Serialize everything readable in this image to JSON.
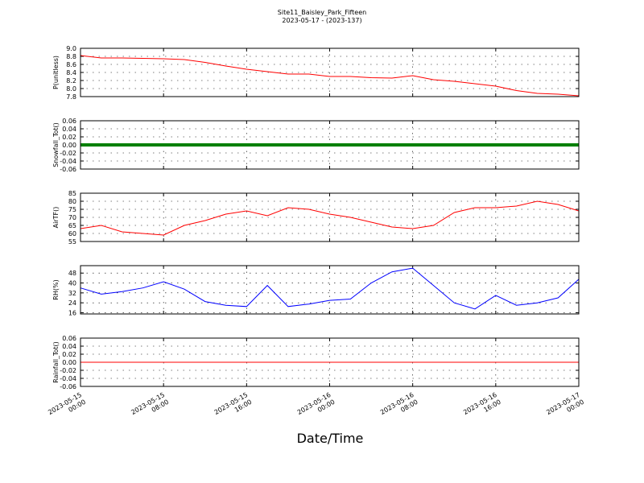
{
  "chart_data": [
    {
      "type": "line",
      "title": "Site11_Baisley_Park_Fifteen",
      "subtitle": "2023-05-17 - (2023-137)",
      "ylabel": "P(unitless)",
      "color": "#ff0000",
      "x": [
        "2023-05-15 00:00",
        "2023-05-15 02:00",
        "2023-05-15 04:00",
        "2023-05-15 06:00",
        "2023-05-15 08:00",
        "2023-05-15 10:00",
        "2023-05-15 12:00",
        "2023-05-15 14:00",
        "2023-05-15 16:00",
        "2023-05-15 18:00",
        "2023-05-15 20:00",
        "2023-05-15 22:00",
        "2023-05-16 00:00",
        "2023-05-16 02:00",
        "2023-05-16 04:00",
        "2023-05-16 06:00",
        "2023-05-16 08:00",
        "2023-05-16 10:00",
        "2023-05-16 12:00",
        "2023-05-16 14:00",
        "2023-05-16 16:00",
        "2023-05-16 18:00",
        "2023-05-16 20:00",
        "2023-05-16 22:00",
        "2023-05-17 00:00"
      ],
      "values": [
        8.82,
        8.76,
        8.76,
        8.75,
        8.74,
        8.72,
        8.65,
        8.56,
        8.48,
        8.42,
        8.36,
        8.36,
        8.3,
        8.3,
        8.27,
        8.26,
        8.32,
        8.22,
        8.18,
        8.12,
        8.06,
        7.95,
        7.88,
        7.86,
        7.82
      ],
      "ylim": [
        7.8,
        9.0
      ],
      "yticks": [
        7.8,
        {
          "value": 8,
          "label": "8.0"
        },
        8.2,
        8.4,
        8.6,
        8.8,
        {
          "value": 9,
          "label": "9.0"
        }
      ],
      "grid": true
    },
    {
      "type": "line",
      "ylabel": "Snowfall_Tot()",
      "color": "#008000",
      "x": [
        "2023-05-15 00:00",
        "2023-05-15 02:00",
        "2023-05-15 04:00",
        "2023-05-15 06:00",
        "2023-05-15 08:00",
        "2023-05-15 10:00",
        "2023-05-15 12:00",
        "2023-05-15 14:00",
        "2023-05-15 16:00",
        "2023-05-15 18:00",
        "2023-05-15 20:00",
        "2023-05-15 22:00",
        "2023-05-16 00:00",
        "2023-05-16 02:00",
        "2023-05-16 04:00",
        "2023-05-16 06:00",
        "2023-05-16 08:00",
        "2023-05-16 10:00",
        "2023-05-16 12:00",
        "2023-05-16 14:00",
        "2023-05-16 16:00",
        "2023-05-16 18:00",
        "2023-05-16 20:00",
        "2023-05-16 22:00",
        "2023-05-17 00:00"
      ],
      "values": [
        0,
        0,
        0,
        0,
        0,
        0,
        0,
        0,
        0,
        0,
        0,
        0,
        0,
        0,
        0,
        0,
        0,
        0,
        0,
        0,
        0,
        0,
        0,
        0,
        0
      ],
      "ylim": [
        -0.06,
        0.06
      ],
      "yticks": [
        -0.06,
        -0.04,
        -0.02,
        {
          "value": 0,
          "label": "0.00"
        },
        0.02,
        0.04,
        0.06
      ],
      "grid": true
    },
    {
      "type": "line",
      "ylabel": "AirTF()",
      "color": "#ff0000",
      "x": [
        "2023-05-15 00:00",
        "2023-05-15 02:00",
        "2023-05-15 04:00",
        "2023-05-15 06:00",
        "2023-05-15 08:00",
        "2023-05-15 10:00",
        "2023-05-15 12:00",
        "2023-05-15 14:00",
        "2023-05-15 16:00",
        "2023-05-15 18:00",
        "2023-05-15 20:00",
        "2023-05-15 22:00",
        "2023-05-16 00:00",
        "2023-05-16 02:00",
        "2023-05-16 04:00",
        "2023-05-16 06:00",
        "2023-05-16 08:00",
        "2023-05-16 10:00",
        "2023-05-16 12:00",
        "2023-05-16 14:00",
        "2023-05-16 16:00",
        "2023-05-16 18:00",
        "2023-05-16 20:00",
        "2023-05-16 22:00",
        "2023-05-17 00:00"
      ],
      "values": [
        63,
        65,
        61,
        60,
        59,
        65,
        68,
        72,
        74,
        71,
        76,
        75,
        72,
        70,
        67,
        64,
        63,
        65,
        73,
        76,
        76,
        77,
        80,
        78,
        74
      ],
      "ylim": [
        55,
        85
      ],
      "yticks": [
        55,
        60,
        65,
        70,
        75,
        80,
        85
      ],
      "grid": true
    },
    {
      "type": "line",
      "ylabel": "RH(%)",
      "color": "#0000ff",
      "x": [
        "2023-05-15 00:00",
        "2023-05-15 02:00",
        "2023-05-15 04:00",
        "2023-05-15 06:00",
        "2023-05-15 08:00",
        "2023-05-15 10:00",
        "2023-05-15 12:00",
        "2023-05-15 14:00",
        "2023-05-15 16:00",
        "2023-05-15 18:00",
        "2023-05-15 20:00",
        "2023-05-15 22:00",
        "2023-05-16 00:00",
        "2023-05-16 02:00",
        "2023-05-16 04:00",
        "2023-05-16 06:00",
        "2023-05-16 08:00",
        "2023-05-16 10:00",
        "2023-05-16 12:00",
        "2023-05-16 14:00",
        "2023-05-16 16:00",
        "2023-05-16 18:00",
        "2023-05-16 20:00",
        "2023-05-16 22:00",
        "2023-05-17 00:00"
      ],
      "values": [
        36,
        31,
        33,
        36,
        41,
        35,
        25,
        22,
        21,
        38,
        21,
        23,
        26,
        27,
        40,
        49,
        52,
        38,
        24,
        19,
        30,
        22,
        24,
        28,
        43
      ],
      "ylim": [
        15,
        54
      ],
      "yticks": [
        16,
        24,
        32,
        40,
        48
      ],
      "grid": true
    },
    {
      "type": "line",
      "ylabel": "Rainfall_Tot()",
      "xlabel": "Date/Time",
      "color": "#ff0000",
      "x": [
        "2023-05-15 00:00",
        "2023-05-15 02:00",
        "2023-05-15 04:00",
        "2023-05-15 06:00",
        "2023-05-15 08:00",
        "2023-05-15 10:00",
        "2023-05-15 12:00",
        "2023-05-15 14:00",
        "2023-05-15 16:00",
        "2023-05-15 18:00",
        "2023-05-15 20:00",
        "2023-05-15 22:00",
        "2023-05-16 00:00",
        "2023-05-16 02:00",
        "2023-05-16 04:00",
        "2023-05-16 06:00",
        "2023-05-16 08:00",
        "2023-05-16 10:00",
        "2023-05-16 12:00",
        "2023-05-16 14:00",
        "2023-05-16 16:00",
        "2023-05-16 18:00",
        "2023-05-16 20:00",
        "2023-05-16 22:00",
        "2023-05-17 00:00"
      ],
      "values": [
        0,
        0,
        0,
        0,
        0,
        0,
        0,
        0,
        0,
        0,
        0,
        0,
        0,
        0,
        0,
        0,
        0,
        0,
        0,
        0,
        0,
        0,
        0,
        0,
        0
      ],
      "ylim": [
        -0.06,
        0.06
      ],
      "yticks": [
        -0.06,
        -0.04,
        -0.02,
        {
          "value": 0,
          "label": "0.00"
        },
        0.02,
        0.04,
        0.06
      ],
      "grid": true,
      "xlim": [
        "2023-05-15 00:00",
        "2023-05-17 00:00"
      ],
      "xticks": [
        {
          "value": "2023-05-15 00:00",
          "label": "2023-05-15\n00:00"
        },
        {
          "value": "2023-05-15 08:00",
          "label": "2023-05-15\n08:00"
        },
        {
          "value": "2023-05-15 16:00",
          "label": "2023-05-15\n16:00"
        },
        {
          "value": "2023-05-16 00:00",
          "label": "2023-05-16\n00:00"
        },
        {
          "value": "2023-05-16 08:00",
          "label": "2023-05-16\n08:00"
        },
        {
          "value": "2023-05-16 16:00",
          "label": "2023-05-16\n16:00"
        },
        {
          "value": "2023-05-17 00:00",
          "label": "2023-05-17\n00:00"
        }
      ]
    }
  ]
}
